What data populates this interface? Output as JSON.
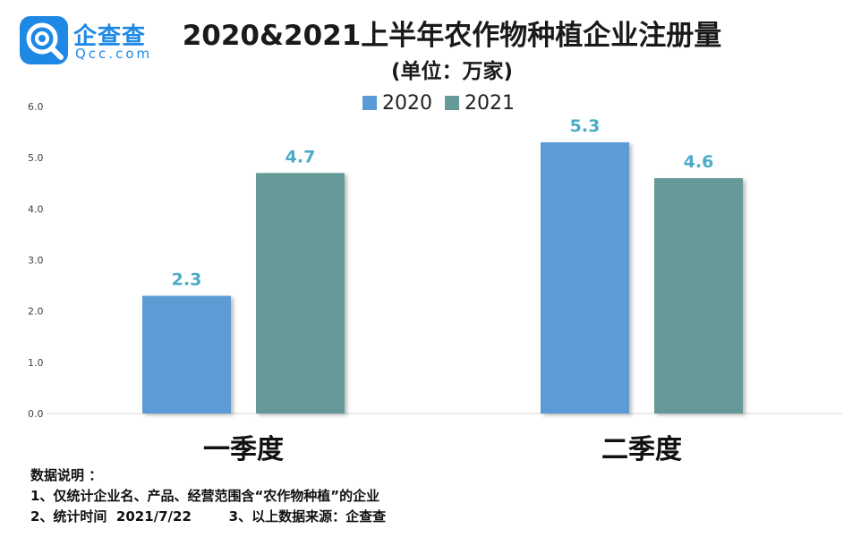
{
  "logo": {
    "name_cn": "企查查",
    "name_en": "Qcc.com",
    "mark": "qcc-magnifier-logo",
    "color": "#1e88e5"
  },
  "title": "2020&2021上半年农作物种植企业注册量",
  "subtitle": "(单位：万家)",
  "chart_data": {
    "type": "bar",
    "title": "2020&2021上半年农作物种植企业注册量",
    "subtitle": "(单位：万家)",
    "categories": [
      "一季度",
      "二季度"
    ],
    "series": [
      {
        "name": "2020",
        "values": [
          2.3,
          5.3
        ],
        "color": "#5b9bd5"
      },
      {
        "name": "2021",
        "values": [
          4.7,
          4.6
        ],
        "color": "#669a99"
      }
    ],
    "yticks": [
      "0.0",
      "1.0",
      "2.0",
      "3.0",
      "4.0",
      "5.0",
      "6.0"
    ],
    "ylim": [
      0,
      6
    ],
    "legend": "top-center",
    "grid": false,
    "data_label_color": "#4bacc6"
  },
  "notes": {
    "heading": "数据说明 ：",
    "line1": "1、仅统计企业名、产品、经营范围含“农作物种植”的企业",
    "line2": "2、统计时间  2021/7/22        3、以上数据来源：企查查"
  }
}
